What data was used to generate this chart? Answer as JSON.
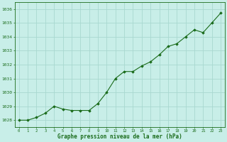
{
  "x": [
    0,
    1,
    2,
    3,
    4,
    5,
    6,
    7,
    8,
    9,
    10,
    11,
    12,
    13,
    14,
    15,
    16,
    17,
    18,
    19,
    20,
    21,
    22,
    23
  ],
  "y": [
    1028.0,
    1028.0,
    1028.2,
    1028.5,
    1029.0,
    1028.8,
    1028.7,
    1028.7,
    1028.7,
    1029.2,
    1030.0,
    1031.0,
    1031.5,
    1031.5,
    1031.9,
    1032.2,
    1032.7,
    1033.3,
    1033.5,
    1034.0,
    1034.5,
    1034.3,
    1035.0,
    1035.7
  ],
  "line_color": "#1a6b1a",
  "marker_color": "#1a6b1a",
  "bg_color": "#c8eee8",
  "grid_color": "#a8d8d0",
  "xlabel": "Graphe pression niveau de la mer (hPa)",
  "xlabel_color": "#1a6b1a",
  "tick_color": "#1a6b1a",
  "ylim": [
    1027.5,
    1036.5
  ],
  "yticks": [
    1028,
    1029,
    1030,
    1031,
    1032,
    1033,
    1034,
    1035,
    1036
  ],
  "xlim": [
    -0.5,
    23.5
  ],
  "xticks": [
    0,
    1,
    2,
    3,
    4,
    5,
    6,
    7,
    8,
    9,
    10,
    11,
    12,
    13,
    14,
    15,
    16,
    17,
    18,
    19,
    20,
    21,
    22,
    23
  ],
  "figsize": [
    3.2,
    2.0
  ],
  "dpi": 100
}
